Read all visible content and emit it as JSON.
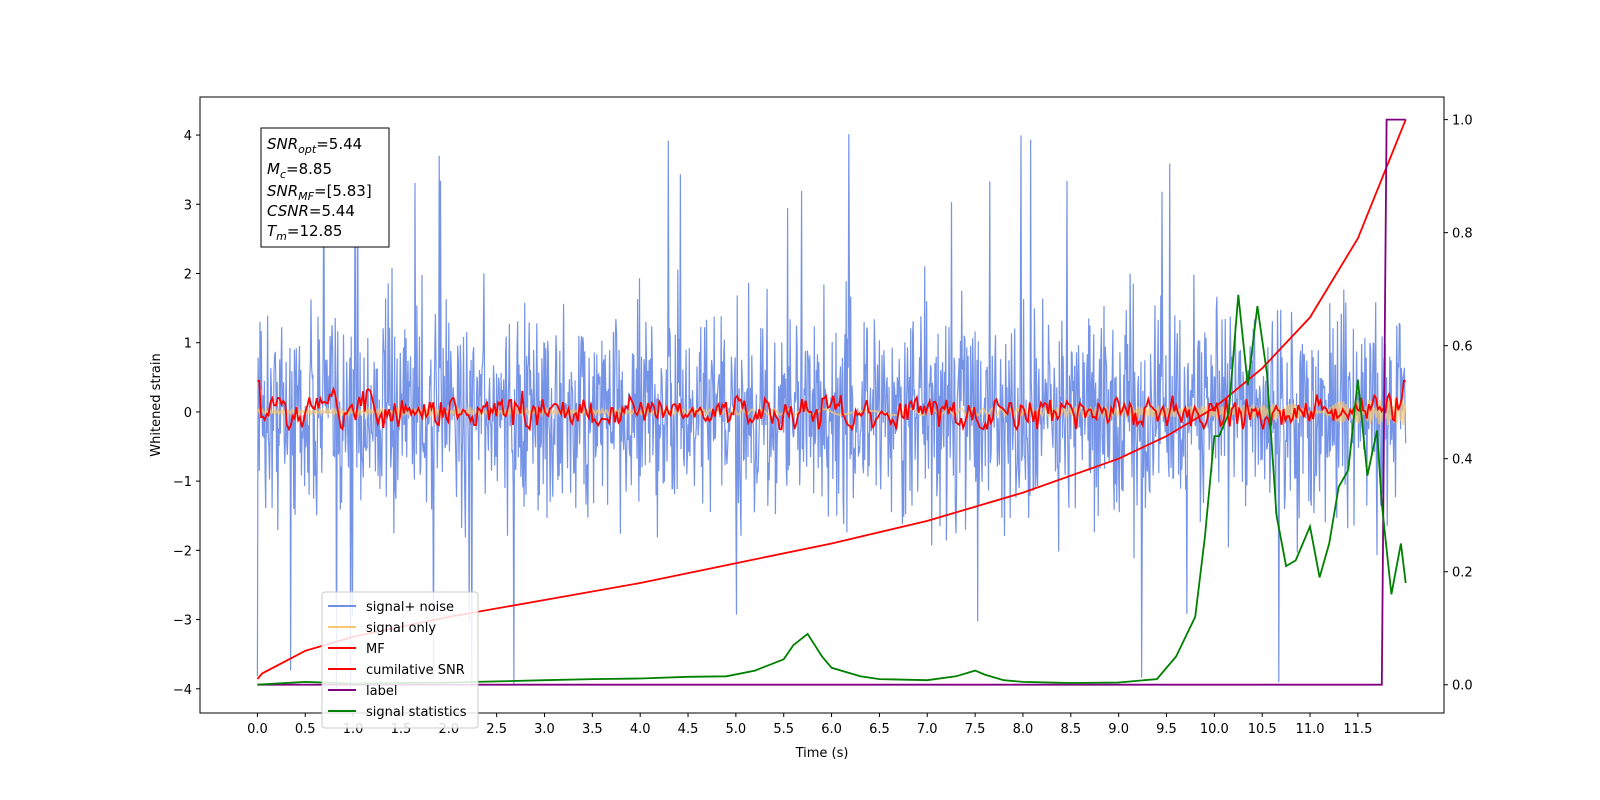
{
  "chart_data": {
    "type": "line",
    "xlabel": "Time (s)",
    "ylabel_left": "Whitened strain",
    "ylabel_right": "",
    "xlim": [
      -0.6,
      12.4
    ],
    "ylim_left": [
      -4.35,
      4.55
    ],
    "ylim_right": [
      -0.05,
      1.04
    ],
    "x_ticks": [
      "0.0",
      "0.5",
      "1.0",
      "1.5",
      "2.0",
      "2.5",
      "3.0",
      "3.5",
      "4.0",
      "4.5",
      "5.0",
      "5.5",
      "6.0",
      "6.5",
      "7.0",
      "7.5",
      "8.0",
      "8.5",
      "9.0",
      "9.5",
      "10.0",
      "10.5",
      "11.0",
      "11.5"
    ],
    "y_ticks_left": [
      "4",
      "3",
      "2",
      "1",
      "0",
      "−1",
      "−2",
      "−3",
      "−4"
    ],
    "y_ticks_right": [
      "1.0",
      "0.8",
      "0.6",
      "0.4",
      "0.2",
      "0.0"
    ],
    "grid": false,
    "legend_position": "lower-left",
    "colors": {
      "signal_noise": "#6f8ee6",
      "signal_only": "#f7c870",
      "mf": "#ff0000",
      "cumulative_snr": "#ff0000",
      "label": "#800080",
      "signal_statistics": "#008000"
    },
    "series": [
      {
        "name": "signal+ noise",
        "axis": "left",
        "style": "dense-noise",
        "x_range": [
          0,
          12
        ],
        "envelope_typical": [
          -1.7,
          1.9
        ],
        "peak_max": 4.18,
        "peak_min": -4.0
      },
      {
        "name": "signal only",
        "axis": "left",
        "style": "chirp-band",
        "x": [
          0,
          6,
          9,
          10,
          11,
          11.5,
          12
        ],
        "amplitude": [
          0.03,
          0.04,
          0.06,
          0.09,
          0.13,
          0.17,
          0.2
        ]
      },
      {
        "name": "MF",
        "axis": "left",
        "style": "jagged",
        "x_range": [
          0,
          12
        ],
        "band": [
          -0.25,
          0.45
        ],
        "start": 0.9,
        "end": 0.9
      },
      {
        "name": "cumilative SNR",
        "axis": "right",
        "x": [
          0,
          0.05,
          0.5,
          1,
          2,
          3,
          4,
          5,
          6,
          7,
          8,
          9,
          9.5,
          10,
          10.5,
          11,
          11.5,
          12
        ],
        "y": [
          0.01,
          0.02,
          0.06,
          0.085,
          0.12,
          0.15,
          0.18,
          0.215,
          0.25,
          0.29,
          0.34,
          0.4,
          0.44,
          0.49,
          0.56,
          0.65,
          0.79,
          1.0
        ]
      },
      {
        "name": "label",
        "axis": "right",
        "x": [
          0,
          11.75,
          11.8,
          11.92,
          12
        ],
        "y": [
          0,
          0,
          1.0,
          1.0,
          1.0
        ]
      },
      {
        "name": "signal statistics",
        "axis": "right",
        "x": [
          0,
          0.5,
          1,
          1.5,
          2,
          2.5,
          3,
          3.5,
          4,
          4.5,
          4.9,
          5.2,
          5.5,
          5.6,
          5.75,
          5.9,
          6.0,
          6.3,
          6.5,
          7,
          7.3,
          7.5,
          7.6,
          7.8,
          8,
          8.5,
          9,
          9.4,
          9.6,
          9.8,
          9.9,
          10.0,
          10.05,
          10.15,
          10.25,
          10.35,
          10.45,
          10.55,
          10.65,
          10.75,
          10.85,
          11.0,
          11.1,
          11.2,
          11.3,
          11.4,
          11.5,
          11.6,
          11.7,
          11.75,
          11.85,
          11.95,
          12.0
        ],
        "y": [
          0.0,
          0.005,
          0.002,
          0.003,
          0.004,
          0.006,
          0.008,
          0.01,
          0.011,
          0.014,
          0.015,
          0.025,
          0.045,
          0.07,
          0.09,
          0.05,
          0.03,
          0.015,
          0.01,
          0.008,
          0.015,
          0.025,
          0.018,
          0.008,
          0.005,
          0.003,
          0.004,
          0.01,
          0.05,
          0.12,
          0.26,
          0.44,
          0.44,
          0.48,
          0.69,
          0.53,
          0.67,
          0.55,
          0.3,
          0.21,
          0.22,
          0.28,
          0.19,
          0.25,
          0.35,
          0.38,
          0.54,
          0.37,
          0.45,
          0.32,
          0.16,
          0.25,
          0.18
        ]
      }
    ],
    "legend": [
      "signal+ noise",
      "signal only",
      "MF",
      "cumilative SNR",
      "label",
      "signal statistics"
    ]
  },
  "info_box": {
    "snr_opt_name": "SNR",
    "snr_opt_sub": "opt",
    "snr_opt_value": "=5.44",
    "mc_name": "M",
    "mc_sub": "c",
    "mc_value": "=8.85",
    "snr_mf_name": "SNR",
    "snr_mf_sub": "MF",
    "snr_mf_value": "=[5.83]",
    "csnr_name": "CSNR",
    "csnr_value": "=5.44",
    "tm_name": "T",
    "tm_sub": "m",
    "tm_value": "=12.85"
  }
}
